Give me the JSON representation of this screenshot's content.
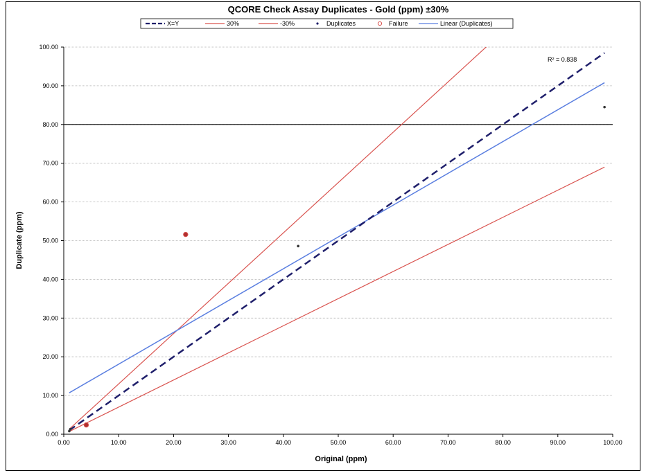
{
  "chart_data": {
    "type": "scatter",
    "title": "QCORE Check Assay Duplicates - Gold (ppm)  ±30%",
    "xlabel": "Original (ppm)",
    "ylabel": "Duplicate (ppm)",
    "xlim": [
      0,
      100
    ],
    "ylim": [
      0,
      100
    ],
    "x_ticks": [
      "0.00",
      "10.00",
      "20.00",
      "30.00",
      "40.00",
      "50.00",
      "60.00",
      "70.00",
      "80.00",
      "90.00",
      "100.00"
    ],
    "y_ticks": [
      "0.00",
      "10.00",
      "20.00",
      "30.00",
      "40.00",
      "50.00",
      "60.00",
      "70.00",
      "80.00",
      "90.00",
      "100.00"
    ],
    "grid": "horizontal",
    "reference_line_y": 80,
    "legend": [
      {
        "key": "xy",
        "label": "X=Y",
        "color": "#1f1f6b"
      },
      {
        "key": "plus30",
        "label": "30%",
        "color": "#d9534f"
      },
      {
        "key": "minus30",
        "label": "-30%",
        "color": "#d9534f"
      },
      {
        "key": "dup",
        "label": "Duplicates",
        "color": "#1f1f6b"
      },
      {
        "key": "fail",
        "label": "Failure",
        "color": "#d9534f"
      },
      {
        "key": "linear",
        "label": "Linear (Duplicates)",
        "color": "#5b7fe0"
      }
    ],
    "lines": {
      "xy": {
        "x": [
          1,
          98.5
        ],
        "y": [
          1,
          98.5
        ]
      },
      "plus30": {
        "x": [
          1,
          79
        ],
        "y": [
          1.3,
          102.7
        ]
      },
      "minus30": {
        "x": [
          1,
          98.5
        ],
        "y": [
          0.7,
          69
        ]
      },
      "linear": {
        "x": [
          1,
          98.5
        ],
        "y": [
          10.7,
          90.8
        ]
      }
    },
    "duplicates": {
      "x": [
        42.7,
        98.5,
        1.0,
        1.2
      ],
      "y": [
        48.6,
        84.5,
        0.8,
        1.3
      ]
    },
    "failures": {
      "x": [
        22.2,
        4.1
      ],
      "y": [
        51.6,
        2.4
      ]
    },
    "annotation": "R² = 0.838"
  }
}
